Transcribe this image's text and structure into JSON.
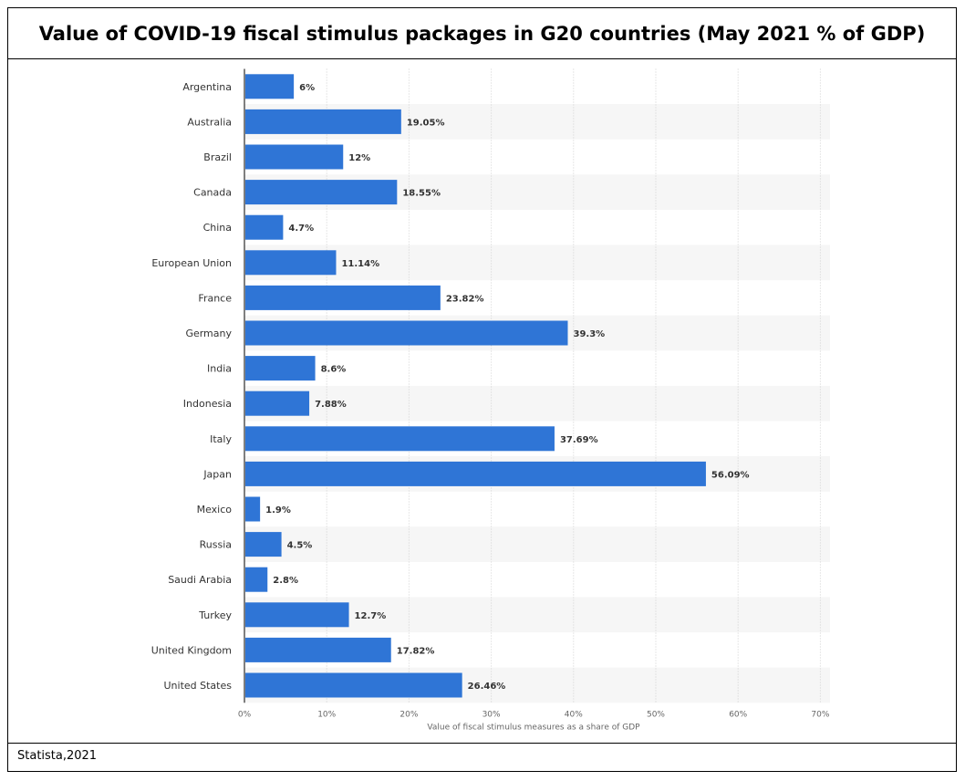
{
  "title": "Value of COVID-19 fiscal stimulus packages in G20 countries (May 2021 % of GDP)",
  "source": "Statista,2021",
  "colors": {
    "bar": "#2f75d6",
    "band": "#f6f6f6",
    "grid": "#d0d0d0",
    "axis": "#000000"
  },
  "chart_data": {
    "type": "bar",
    "orientation": "horizontal",
    "title": "Value of COVID-19 fiscal stimulus packages in G20 countries (May 2021 % of GDP)",
    "xlabel": "Value of fiscal stimulus measures as a share of GDP",
    "ylabel": "",
    "xlim": [
      0,
      70
    ],
    "ticks": [
      0,
      10,
      20,
      30,
      40,
      50,
      60,
      70
    ],
    "tick_labels": [
      "0%",
      "10%",
      "20%",
      "30%",
      "40%",
      "50%",
      "60%",
      "70%"
    ],
    "categories": [
      "Argentina",
      "Australia",
      "Brazil",
      "Canada",
      "China",
      "European Union",
      "France",
      "Germany",
      "India",
      "Indonesia",
      "Italy",
      "Japan",
      "Mexico",
      "Russia",
      "Saudi Arabia",
      "Turkey",
      "United Kingdom",
      "United States"
    ],
    "values": [
      6,
      19.05,
      12,
      18.55,
      4.7,
      11.14,
      23.82,
      39.3,
      8.6,
      7.88,
      37.69,
      56.09,
      1.9,
      4.5,
      2.8,
      12.7,
      17.82,
      26.46
    ],
    "value_labels": [
      "6%",
      "19.05%",
      "12%",
      "18.55%",
      "4.7%",
      "11.14%",
      "23.82%",
      "39.3%",
      "8.6%",
      "7.88%",
      "37.69%",
      "56.09%",
      "1.9%",
      "4.5%",
      "2.8%",
      "12.7%",
      "17.82%",
      "26.46%"
    ],
    "grid": true
  }
}
